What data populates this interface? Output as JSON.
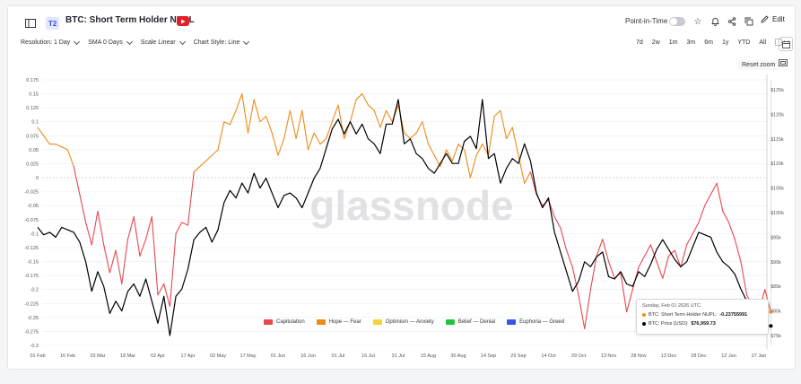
{
  "header": {
    "tag": "T2",
    "title": "BTC: Short Term Holder NUPL",
    "point_in_time": "Point-in-Time",
    "edit": "Edit"
  },
  "toolbar": {
    "resolution": "Resolution: 1 Day",
    "sma": "SMA 0 Days",
    "scale": "Scale Linear",
    "style": "Chart Style: Line",
    "ranges": [
      "7d",
      "2w",
      "1m",
      "3m",
      "6m",
      "1y",
      "YTD",
      "All"
    ],
    "reset_zoom": "Reset zoom"
  },
  "tooltip": {
    "date": "Sunday, Feb 01 2026 UTC",
    "nupl_label": "BTC: Short Term Holder NUPL:",
    "nupl_value": "-0.23755991",
    "price_label": "BTC: Price [USD]:",
    "price_value": "$76,959.73"
  },
  "watermark": "glassnode",
  "colors": {
    "capitulation": "#e8474f",
    "hope_fear": "#ef8a17",
    "optimism": "#f5d33b",
    "belief": "#27c23b",
    "euphoria": "#3556e8",
    "price": "#000000"
  },
  "chart_data": {
    "type": "line",
    "x_ticks": [
      "01 Feb",
      "16 Feb",
      "03 Mar",
      "18 Mar",
      "02 Apr",
      "17 Apr",
      "02 May",
      "17 May",
      "01 Jun",
      "16 Jun",
      "01 Jul",
      "16 Jul",
      "31 Jul",
      "15 Aug",
      "30 Aug",
      "14 Sep",
      "29 Sep",
      "14 Oct",
      "29 Oct",
      "13 Nov",
      "28 Nov",
      "13 Dec",
      "28 Dec",
      "12 Jan",
      "27 Jan"
    ],
    "y_left_ticks": [
      "0.175",
      "0.15",
      "0.125",
      "0.1",
      "0.075",
      "0.05",
      "0.025",
      "0",
      "-0.025",
      "-0.05",
      "-0.075",
      "-0.1",
      "-0.125",
      "-0.15",
      "-0.175",
      "-0.2",
      "-0.225",
      "-0.25",
      "-0.275",
      "-0.3"
    ],
    "y_right_ticks": [
      "$125k",
      "$120k",
      "$115k",
      "$110k",
      "$105k",
      "$100k",
      "$95k",
      "$90k",
      "$85k",
      "$80k",
      "$75k"
    ],
    "ylim_left": [
      -0.3,
      0.175
    ],
    "ylim_right": [
      73000,
      127000
    ],
    "legend": [
      "Capitulation",
      "Hope — Fear",
      "Optimism — Anxiety",
      "Belief — Denial",
      "Euphoria — Greed"
    ],
    "series": [
      {
        "name": "BTC: Short Term Holder NUPL",
        "x_days": [
          0,
          3,
          6,
          9,
          12,
          15,
          18,
          21,
          24,
          27,
          30,
          33,
          36,
          39,
          42,
          45,
          48,
          51,
          54,
          57,
          60,
          63,
          66,
          69,
          72,
          75,
          78,
          81,
          84,
          87,
          90,
          93,
          96,
          99,
          102,
          105,
          108,
          111,
          114,
          117,
          120,
          123,
          126,
          129,
          132,
          135,
          138,
          141,
          144,
          147,
          150,
          153,
          156,
          159,
          162,
          165,
          168,
          171,
          174,
          177,
          180,
          183,
          186,
          189,
          192,
          195,
          198,
          201,
          204,
          207,
          210,
          213,
          216,
          219,
          222,
          225,
          228,
          231,
          234,
          237,
          240,
          243,
          246,
          249,
          252,
          255,
          258,
          261,
          264,
          267,
          270,
          273,
          276,
          279,
          282,
          285,
          288,
          291,
          294,
          297,
          300,
          303,
          306,
          309,
          312,
          315,
          318,
          321,
          324,
          327,
          330,
          333,
          336,
          339,
          342,
          345,
          348,
          351,
          354,
          357,
          360,
          363,
          366
        ],
        "values": [
          0.09,
          0.075,
          0.06,
          0.06,
          0.055,
          0.05,
          0.02,
          -0.03,
          -0.08,
          -0.12,
          -0.06,
          -0.12,
          -0.17,
          -0.13,
          -0.19,
          -0.11,
          -0.07,
          -0.14,
          -0.11,
          -0.07,
          -0.21,
          -0.19,
          -0.23,
          -0.1,
          -0.08,
          -0.085,
          0.01,
          0.02,
          0.03,
          0.04,
          0.05,
          0.1,
          0.095,
          0.12,
          0.15,
          0.08,
          0.14,
          0.1,
          0.11,
          0.08,
          0.04,
          0.07,
          0.12,
          0.07,
          0.12,
          0.05,
          0.08,
          0.06,
          0.07,
          0.1,
          0.13,
          0.07,
          0.1,
          0.14,
          0.15,
          0.13,
          0.12,
          0.09,
          0.12,
          0.1,
          0.13,
          0.08,
          0.07,
          0.08,
          0.1,
          0.06,
          0.04,
          0.02,
          0.05,
          0.03,
          0.06,
          0.05,
          0.0,
          0.04,
          0.06,
          0.04,
          0.11,
          0.12,
          0.07,
          0.09,
          0.04,
          -0.01,
          0.01,
          -0.03,
          -0.05,
          -0.04,
          -0.07,
          -0.09,
          -0.13,
          -0.16,
          -0.21,
          -0.27,
          -0.2,
          -0.14,
          -0.11,
          -0.15,
          -0.18,
          -0.17,
          -0.24,
          -0.2,
          -0.16,
          -0.14,
          -0.12,
          -0.15,
          -0.18,
          -0.14,
          -0.13,
          -0.16,
          -0.12,
          -0.1,
          -0.08,
          -0.05,
          -0.03,
          -0.01,
          -0.06,
          -0.08,
          -0.11,
          -0.15,
          -0.21,
          -0.23,
          -0.24,
          -0.2,
          -0.24
        ]
      },
      {
        "name": "BTC: Price [USD]",
        "x_days": [
          0,
          3,
          6,
          9,
          12,
          15,
          18,
          21,
          24,
          27,
          30,
          33,
          36,
          39,
          42,
          45,
          48,
          51,
          54,
          57,
          60,
          63,
          66,
          69,
          72,
          75,
          78,
          81,
          84,
          87,
          90,
          93,
          96,
          99,
          102,
          105,
          108,
          111,
          114,
          117,
          120,
          123,
          126,
          129,
          132,
          135,
          138,
          141,
          144,
          147,
          150,
          153,
          156,
          159,
          162,
          165,
          168,
          171,
          174,
          177,
          180,
          183,
          186,
          189,
          192,
          195,
          198,
          201,
          204,
          207,
          210,
          213,
          216,
          219,
          222,
          225,
          228,
          231,
          234,
          237,
          240,
          243,
          246,
          249,
          252,
          255,
          258,
          261,
          264,
          267,
          270,
          273,
          276,
          279,
          282,
          285,
          288,
          291,
          294,
          297,
          300,
          303,
          306,
          309,
          312,
          315,
          318,
          321,
          324,
          327,
          330,
          333,
          336,
          339,
          342,
          345,
          348,
          351,
          354,
          357,
          360,
          363,
          366
        ],
        "values": [
          97000,
          95500,
          96000,
          95000,
          97000,
          96500,
          96000,
          94000,
          90000,
          84000,
          88000,
          85000,
          79500,
          82000,
          80000,
          84000,
          85500,
          83000,
          86500,
          82000,
          77500,
          83000,
          75000,
          83000,
          84500,
          88500,
          94500,
          96000,
          97000,
          94000,
          96500,
          102000,
          104500,
          103000,
          106000,
          104000,
          108000,
          105000,
          107000,
          104000,
          101000,
          103500,
          104000,
          103000,
          101000,
          104000,
          107000,
          109000,
          113000,
          117000,
          119000,
          116000,
          118500,
          116000,
          118000,
          115000,
          114000,
          112000,
          118000,
          118000,
          123000,
          114000,
          115000,
          112000,
          111000,
          109000,
          108000,
          110000,
          112000,
          110000,
          110000,
          114500,
          115500,
          113000,
          123000,
          111000,
          112000,
          106000,
          109000,
          111000,
          110000,
          114000,
          110500,
          104000,
          101000,
          103000,
          96000,
          92000,
          88000,
          84000,
          86000,
          90000,
          89000,
          91000,
          92000,
          87000,
          86500,
          88000,
          85500,
          85000,
          88000,
          87000,
          89500,
          92500,
          94500,
          92500,
          90500,
          89000,
          90000,
          93000,
          96000,
          95500,
          95000,
          92000,
          90000,
          89000,
          87500,
          84500,
          82000,
          79000,
          77500,
          76960,
          76960
        ]
      }
    ]
  }
}
